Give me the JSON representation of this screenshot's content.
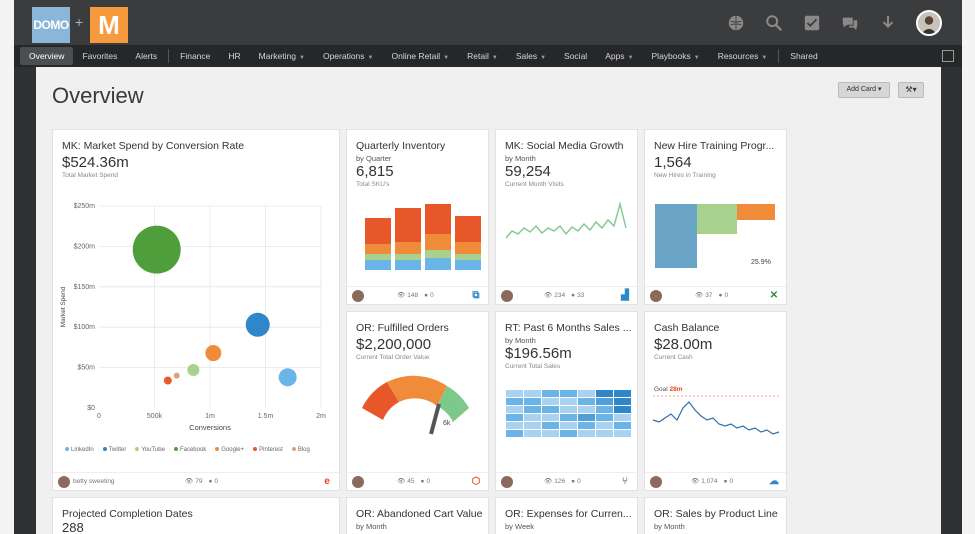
{
  "app": {
    "logo_left": "DOMO",
    "logo_plus": "+",
    "logo_right": "M"
  },
  "nav": {
    "items": [
      "Overview",
      "Favorites",
      "Alerts",
      "Finance",
      "HR",
      "Marketing",
      "Operations",
      "Online Retail",
      "Retail",
      "Sales",
      "Social",
      "Apps",
      "Playbooks",
      "Resources",
      "Shared"
    ]
  },
  "page": {
    "title": "Overview",
    "add_card": "Add Card",
    "wrench": "⚒"
  },
  "cards": {
    "market": {
      "title": "MK: Market Spend by Conversion Rate",
      "value": "$524.36m",
      "caption": "Total Market Spend",
      "footer_user": "betty sweeting",
      "views": "79",
      "comments": "0"
    },
    "inventory": {
      "title": "Quarterly Inventory",
      "sub": "by Quarter",
      "value": "6,815",
      "caption": "Total SKU's",
      "views": "148",
      "comments": "0"
    },
    "social": {
      "title": "MK: Social Media Growth",
      "sub": "by Month",
      "value": "59,254",
      "caption": "Current Month Visits",
      "views": "234",
      "comments": "33"
    },
    "hire": {
      "title": "New Hire Training Progr...",
      "value": "1,564",
      "caption": "New Hires in Training",
      "pct": "25.9%",
      "views": "37",
      "comments": "0"
    },
    "orders": {
      "title": "OR: Fulfilled Orders",
      "value": "$2,200,000",
      "caption": "Current Total Order Value",
      "gauge_label": "6k",
      "views": "45",
      "comments": "0"
    },
    "sales": {
      "title": "RT: Past 6 Months Sales ...",
      "sub": "by Month",
      "value": "$196.56m",
      "caption": "Current Total Sales",
      "views": "126",
      "comments": "0"
    },
    "cash": {
      "title": "Cash Balance",
      "value": "$28.00m",
      "caption": "Current Cash",
      "goal_label": "Goal",
      "goal_value": "28m",
      "views": "1,074",
      "comments": "0"
    },
    "projected": {
      "title": "Projected Completion Dates",
      "value": "288"
    },
    "abandoned": {
      "title": "OR: Abandoned Cart Value",
      "sub": "by Month"
    },
    "expenses": {
      "title": "OR: Expenses for Curren...",
      "sub": "by Week"
    },
    "product": {
      "title": "OR: Sales by Product Line",
      "sub": "by Month"
    }
  },
  "chart_data": {
    "type": "scatter",
    "title": "MK: Market Spend by Conversion Rate",
    "xlabel": "Conversions",
    "ylabel": "Market Spend",
    "x_ticks": [
      "0",
      "500k",
      "1m",
      "1.5m",
      "2m"
    ],
    "y_ticks": [
      "$0",
      "$50m",
      "$100m",
      "$150m",
      "$200m",
      "$250m"
    ],
    "xlim": [
      0,
      2000000
    ],
    "ylim": [
      0,
      250000000
    ],
    "series": [
      {
        "name": "LinkedIn",
        "color": "#6ab4e8",
        "x": 1700000,
        "y": 38000000,
        "r": 9
      },
      {
        "name": "Twitter",
        "color": "#2f87c9",
        "x": 1430000,
        "y": 103000000,
        "r": 12
      },
      {
        "name": "YouTube",
        "color": "#a9d18e",
        "x": 850000,
        "y": 47000000,
        "r": 6
      },
      {
        "name": "Facebook",
        "color": "#4f9e3c",
        "x": 520000,
        "y": 196000000,
        "r": 24
      },
      {
        "name": "Google+",
        "color": "#f08b3a",
        "x": 1030000,
        "y": 68000000,
        "r": 8
      },
      {
        "name": "Pinterest",
        "color": "#e85a2a",
        "x": 620000,
        "y": 34000000,
        "r": 4
      },
      {
        "name": "Blog",
        "color": "#e0a080",
        "x": 700000,
        "y": 40000000,
        "r": 3
      }
    ],
    "legend": [
      "LinkedIn",
      "Twitter",
      "YouTube",
      "Facebook",
      "Google+",
      "Pinterest",
      "Blog"
    ]
  }
}
